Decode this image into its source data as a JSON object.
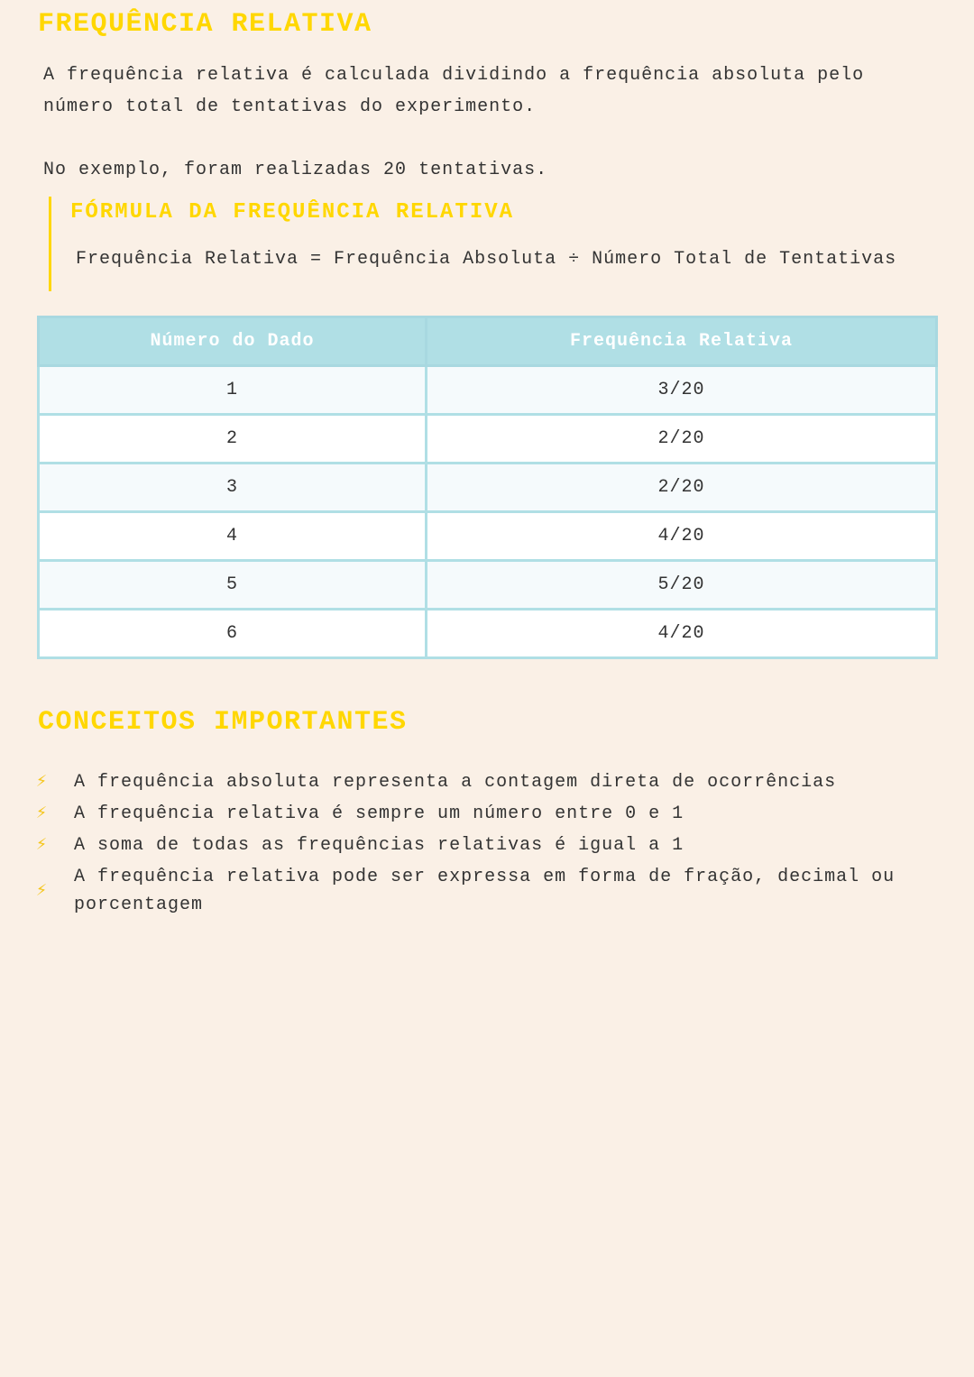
{
  "title": "FREQUÊNCIA RELATIVA",
  "intro": "A frequência relativa é calculada dividindo a frequência absoluta pelo número total de tentativas do experimento.",
  "example": "No exemplo, foram realizadas 20 tentativas.",
  "formula": {
    "heading": "FÓRMULA DA FREQUÊNCIA RELATIVA",
    "text": "Frequência Relativa = Frequência Absoluta ÷ Número Total de Tentativas"
  },
  "table": {
    "headers": [
      "Número do Dado",
      "Frequência Relativa"
    ],
    "rows": [
      [
        "1",
        "3/20"
      ],
      [
        "2",
        "2/20"
      ],
      [
        "3",
        "2/20"
      ],
      [
        "4",
        "4/20"
      ],
      [
        "5",
        "5/20"
      ],
      [
        "6",
        "4/20"
      ]
    ]
  },
  "concepts": {
    "heading": "CONCEITOS IMPORTANTES",
    "icon": "lightning-icon",
    "items": [
      "A frequência absoluta representa a contagem direta de ocorrências",
      "A frequência relativa é sempre um número entre 0 e 1",
      "A soma de todas as frequências relativas é igual a 1",
      "A frequência relativa pode ser expressa em forma de fração, decimal ou porcentagem"
    ]
  },
  "colors": {
    "accent": "#ffd700",
    "table_header": "#b0dfe5",
    "background": "#faf0e6"
  }
}
